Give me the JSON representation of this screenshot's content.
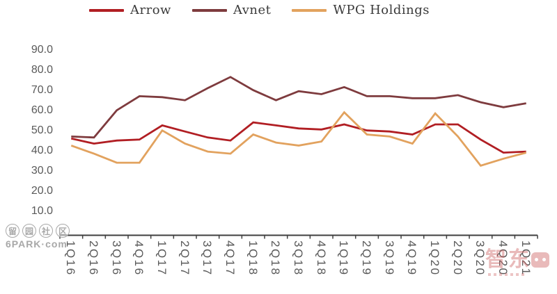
{
  "chart_data": {
    "type": "line",
    "categories": [
      "1Q16",
      "2Q16",
      "3Q16",
      "4Q16",
      "1Q17",
      "2Q17",
      "3Q17",
      "4Q17",
      "1Q18",
      "2Q18",
      "3Q18",
      "4Q18",
      "1Q19",
      "2Q19",
      "3Q19",
      "4Q19",
      "1Q20",
      "2Q20",
      "3Q20",
      "4Q20",
      "1Q21"
    ],
    "series": [
      {
        "name": "Arrow",
        "color": "#b11e23",
        "values": [
          46,
          43.5,
          45,
          45.5,
          52.5,
          49.5,
          46.5,
          45,
          54,
          52.5,
          51,
          50.5,
          53,
          50,
          49.5,
          48,
          53,
          53,
          45.5,
          39,
          39.5
        ]
      },
      {
        "name": "Avnet",
        "color": "#7e3b3e",
        "values": [
          47,
          46.5,
          60,
          67,
          66.5,
          65,
          71,
          76.5,
          70,
          65,
          69.5,
          68,
          71.5,
          67,
          67,
          66,
          66,
          67.5,
          64,
          61.5,
          63.5
        ]
      },
      {
        "name": "WPG Holdings",
        "color": "#e2a25e",
        "values": [
          42.5,
          38.5,
          34,
          34,
          50,
          43.5,
          39.5,
          38.5,
          48,
          44,
          42.5,
          44.5,
          59,
          48,
          47,
          43.5,
          58.5,
          47,
          32.5,
          36,
          39
        ]
      }
    ],
    "title": "",
    "xlabel": "",
    "ylabel": "",
    "yticks": [
      90,
      80,
      70,
      60,
      50,
      40,
      30,
      20,
      10
    ],
    "ytick_decimals": 1,
    "ylim": [
      10,
      90
    ],
    "grid": false,
    "legend_position": "top"
  },
  "colors": {
    "axis_text": "#595959",
    "axis_line": "#3f3f3f",
    "background": "#ffffff"
  },
  "watermarks": {
    "bottom_left": {
      "chars": [
        "留",
        "园",
        "社",
        "区"
      ],
      "line2": "6PARK·com"
    },
    "bottom_right": {
      "chars": [
        "智",
        "东"
      ],
      "name": "智东西"
    }
  }
}
